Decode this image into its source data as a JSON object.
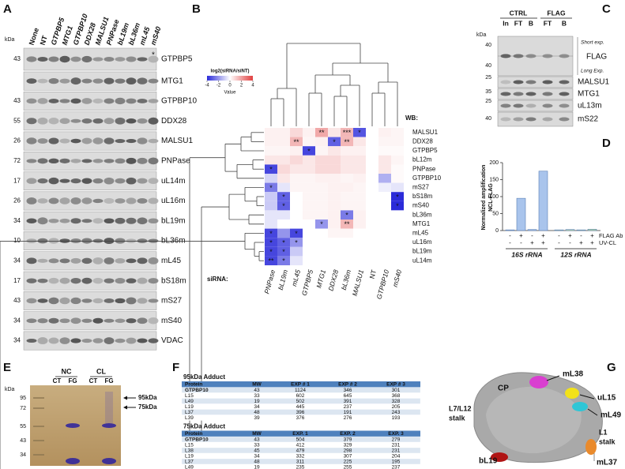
{
  "panel_labels": [
    "A",
    "B",
    "C",
    "D",
    "E",
    "F",
    "G"
  ],
  "blot_a": {
    "unit": "kDa",
    "lanes": [
      "None",
      "NT",
      "GTPBP5",
      "MTG1",
      "GTPBP10",
      "DDX28",
      "MALSU1",
      "PNPase",
      "bL19m",
      "bL36m",
      "mL45",
      "mS40"
    ],
    "rows": [
      {
        "marker": "43",
        "label": "GTPBP5"
      },
      {
        "marker": null,
        "label": "MTG1"
      },
      {
        "marker": "43",
        "label": "GTPBP10"
      },
      {
        "marker": "55",
        "label": "DDX28"
      },
      {
        "marker": "26",
        "label": "MALSU1"
      },
      {
        "marker": "72",
        "label": "PNPase"
      },
      {
        "marker": "17",
        "label": "uL14m"
      },
      {
        "marker": "26",
        "label": "uL16m"
      },
      {
        "marker": "34",
        "label": "bL19m"
      },
      {
        "marker": "10",
        "label": "bL36m"
      },
      {
        "marker": "34",
        "label": "mL45"
      },
      {
        "marker": "17",
        "label": "bS18m"
      },
      {
        "marker": "43",
        "label": "mS27"
      },
      {
        "marker": "34",
        "label": "mS40"
      },
      {
        "marker": "34",
        "label": "VDAC"
      }
    ],
    "star": "*"
  },
  "heatmap": {
    "legend_title": "log2(siRNA/siNT)",
    "legend_ticks": [
      -4,
      -2,
      0,
      2,
      4
    ],
    "legend_sublabel": "Value",
    "row_axis_label": "WB:",
    "col_axis_label": "siRNA:",
    "rows": [
      "MALSU1",
      "DDX28",
      "GTPBP5",
      "bL12m",
      "PNPase",
      "GTPBP10",
      "mS27",
      "bS18m",
      "mS40",
      "bL36m",
      "MTG1",
      "mL45",
      "uL16m",
      "bL19m",
      "uL14m"
    ],
    "cols": [
      "PNPase",
      "bL19m",
      "mL45",
      "GTPBP5",
      "MTG1",
      "DDX28",
      "bL36m",
      "MALSU1",
      "NT",
      "GTPBP10",
      "mS40"
    ],
    "values": [
      [
        0.3,
        0.3,
        0.8,
        0.3,
        1.8,
        0.5,
        1.5,
        -3.2,
        0,
        0.3,
        0.2
      ],
      [
        0.3,
        0.3,
        1.5,
        0.2,
        0.3,
        -3,
        1.5,
        0.5,
        0,
        0.2,
        0.2
      ],
      [
        0.2,
        0.2,
        0.3,
        -3.5,
        0.2,
        0.5,
        0.3,
        0.3,
        0,
        0.1,
        0.1
      ],
      [
        0.5,
        0.5,
        0.8,
        0.5,
        0.8,
        0.8,
        0.5,
        0.5,
        0,
        0.5,
        0.2
      ],
      [
        -3.5,
        0.8,
        0.5,
        0.5,
        0.8,
        0.8,
        0.5,
        0.5,
        0,
        0.5,
        0.1
      ],
      [
        -0.8,
        0.5,
        0.2,
        0.2,
        0.3,
        0.3,
        0.2,
        0.3,
        0,
        -1.5,
        0.1
      ],
      [
        -2.5,
        -0.5,
        0.2,
        0.2,
        0.2,
        0.3,
        0.3,
        0.2,
        0,
        -0.3,
        -0.5
      ],
      [
        -1,
        -3,
        0,
        0.2,
        0.2,
        0.3,
        0.2,
        0.2,
        0,
        0,
        -4
      ],
      [
        -1,
        -3,
        0,
        0.2,
        0.2,
        0.3,
        0.2,
        0.2,
        0,
        0,
        -4
      ],
      [
        -0.5,
        -0.5,
        0,
        0.2,
        0.2,
        0.3,
        -2.5,
        0.3,
        0,
        0,
        0
      ],
      [
        -0.5,
        0,
        0,
        0,
        -2,
        0.3,
        1.5,
        0.3,
        0,
        0,
        0
      ],
      [
        -3.5,
        -2,
        -3.5,
        0,
        0,
        0.2,
        0.2,
        0,
        0,
        0,
        0
      ],
      [
        -3.5,
        -3,
        -2,
        0,
        0,
        0,
        0,
        0,
        0,
        0,
        0
      ],
      [
        -3.5,
        -3,
        -1,
        0,
        0,
        0,
        0,
        0,
        0,
        0,
        0
      ],
      [
        -3.5,
        -2.5,
        -0.5,
        0,
        0,
        0,
        0,
        0,
        0,
        0,
        0
      ]
    ],
    "stars": [
      [
        null,
        null,
        null,
        null,
        "**",
        null,
        "***",
        "*",
        null,
        null,
        null
      ],
      [
        null,
        null,
        "**",
        null,
        null,
        "*",
        "**",
        null,
        null,
        null,
        null
      ],
      [
        null,
        null,
        null,
        "*",
        null,
        null,
        null,
        null,
        null,
        null,
        null
      ],
      [
        null,
        null,
        null,
        null,
        null,
        null,
        null,
        null,
        null,
        null,
        null
      ],
      [
        "*",
        null,
        null,
        null,
        null,
        null,
        null,
        null,
        null,
        null,
        null
      ],
      [
        null,
        null,
        null,
        null,
        null,
        null,
        null,
        null,
        null,
        null,
        null
      ],
      [
        "*",
        null,
        null,
        null,
        null,
        null,
        null,
        null,
        null,
        null,
        null
      ],
      [
        null,
        "*",
        null,
        null,
        null,
        null,
        null,
        null,
        null,
        null,
        "*"
      ],
      [
        null,
        "*",
        null,
        null,
        null,
        null,
        null,
        null,
        null,
        null,
        "*"
      ],
      [
        null,
        null,
        null,
        null,
        null,
        null,
        "*",
        null,
        null,
        null,
        null
      ],
      [
        null,
        null,
        null,
        null,
        "*",
        null,
        "**",
        null,
        null,
        null,
        null
      ],
      [
        "*",
        null,
        "*",
        null,
        null,
        null,
        null,
        null,
        null,
        null,
        null
      ],
      [
        "*",
        "*",
        "*",
        null,
        null,
        null,
        null,
        null,
        null,
        null,
        null
      ],
      [
        "*",
        "*",
        null,
        null,
        null,
        null,
        null,
        null,
        null,
        null,
        null
      ],
      [
        "**",
        "*",
        null,
        null,
        null,
        null,
        null,
        null,
        null,
        null,
        null
      ]
    ]
  },
  "blot_c": {
    "unit": "kDa",
    "groups": [
      "CTRL",
      "FLAG"
    ],
    "lanes": [
      "In",
      "FT",
      "B",
      "FT",
      "B"
    ],
    "rows": [
      {
        "label": "FLAG",
        "markers": [
          "40",
          "40"
        ],
        "notes": [
          "Short exp.",
          "Long Exp."
        ]
      },
      {
        "label": "MALSU1",
        "markers": [
          "25"
        ]
      },
      {
        "label": "MTG1",
        "markers": [
          "35"
        ]
      },
      {
        "label": "uL13m",
        "markers": [
          "25"
        ]
      },
      {
        "label": "mS22",
        "markers": [
          "40"
        ]
      }
    ]
  },
  "chart_d": {
    "type": "bar",
    "ylabel": [
      "Normalized amplification",
      "NCL-FLAG"
    ],
    "ylim": [
      0,
      200
    ],
    "yticks": [
      0,
      50,
      100,
      150,
      200
    ],
    "row_labels": [
      "FLAG Ab",
      "UV-CL"
    ],
    "flag_ab": [
      "-",
      "+",
      "-",
      "+"
    ],
    "uv_cl": [
      "-",
      "-",
      "+",
      "+"
    ],
    "series": [
      {
        "name": "16S rRNA",
        "color": "#a9c4ec",
        "values": [
          2,
          95,
          3,
          175
        ]
      },
      {
        "name": "12S rRNA",
        "color": "#b9e0a5",
        "values": [
          2,
          3,
          2,
          4
        ]
      }
    ]
  },
  "gel_e": {
    "unit": "kDa",
    "groups": [
      "NC",
      "CL"
    ],
    "lanes": [
      "CT",
      "FG",
      "CT",
      "FG"
    ],
    "markers": [
      "95",
      "72",
      "55",
      "43",
      "34"
    ],
    "arrows": [
      "95kDa",
      "75kDa"
    ]
  },
  "tables_f": [
    {
      "title": "95kDa Adduct",
      "header": [
        "Protein",
        "MW",
        "EXP # 1",
        "EXP # 2",
        "EXP # 3"
      ],
      "rows": [
        [
          "GTPBP10",
          43,
          1124,
          346,
          301
        ],
        [
          "L15",
          33,
          602,
          645,
          368
        ],
        [
          "L49",
          19,
          502,
          391,
          328
        ],
        [
          "L19",
          34,
          445,
          237,
          205
        ],
        [
          "L37",
          48,
          396,
          191,
          243
        ],
        [
          "L39",
          39,
          376,
          276,
          193
        ]
      ]
    },
    {
      "title": "75kDa Adduct",
      "header": [
        "Protein",
        "MW",
        "EXP. 1",
        "EXP. 2",
        "EXP. 3"
      ],
      "rows": [
        [
          "GTPBP10",
          43,
          504,
          379,
          279
        ],
        [
          "L15",
          33,
          412,
          329,
          231
        ],
        [
          "L38",
          45,
          479,
          298,
          231
        ],
        [
          "L19",
          34,
          332,
          307,
          204
        ],
        [
          "L37",
          48,
          311,
          225,
          195
        ],
        [
          "L49",
          19,
          235,
          255,
          237
        ]
      ]
    }
  ],
  "structure_g": {
    "labels": [
      "CP",
      "mL38",
      "uL15",
      "mL49",
      "L7/L12",
      "stalk",
      "L1",
      "stalk",
      "bL19",
      "mL37"
    ]
  }
}
